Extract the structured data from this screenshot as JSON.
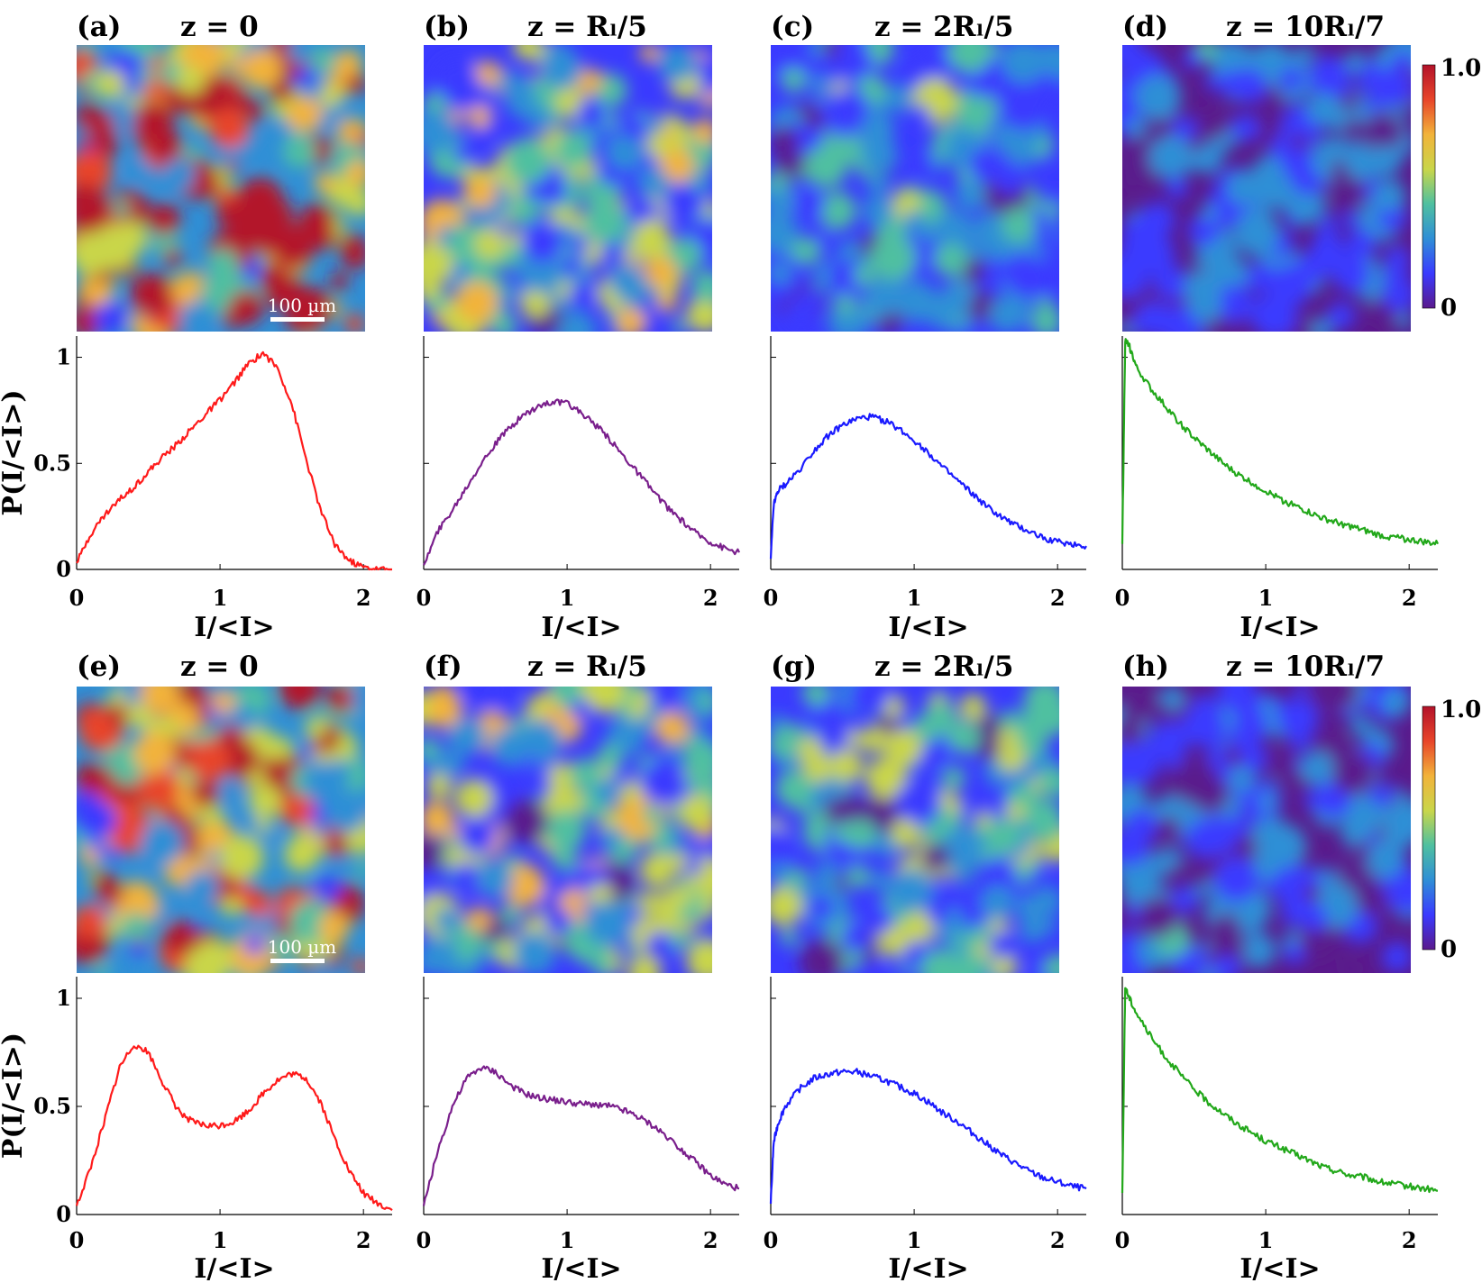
{
  "colors": {
    "curve_red": "#ff1a1a",
    "curve_purple": "#7a1f8c",
    "curve_blue": "#1a1aff",
    "curve_green": "#22a81a",
    "colormap": [
      "#5a1a8c",
      "#3a3aff",
      "#2f8fd6",
      "#4fc0a0",
      "#c9d64a",
      "#f2b33a",
      "#e8452a",
      "#b3122a"
    ]
  },
  "scale_bar": {
    "label": "100 µm"
  },
  "colorbar": {
    "max_label": "1.0",
    "min_label": "0"
  },
  "x_axis_title": "I/<I>",
  "y_axis_title": "P(I/<I>)",
  "rows": [
    {
      "id": "top",
      "panels": [
        {
          "label": "(a)",
          "z": "z = 0",
          "brightness": 0.68,
          "color_key": "curve_red"
        },
        {
          "label": "(b)",
          "z": "z = Rₗ/5",
          "brightness": 0.38,
          "color_key": "curve_purple"
        },
        {
          "label": "(c)",
          "z": "z =  2Rₗ/5",
          "brightness": 0.27,
          "color_key": "curve_blue"
        },
        {
          "label": "(d)",
          "z": "z = 10Rₗ/7",
          "brightness": 0.2,
          "color_key": "curve_green"
        }
      ]
    },
    {
      "id": "bottom",
      "panels": [
        {
          "label": "(e)",
          "z": "z = 0",
          "brightness": 0.55,
          "color_key": "curve_red"
        },
        {
          "label": "(f)",
          "z": "z = Rₗ/5",
          "brightness": 0.38,
          "color_key": "curve_purple"
        },
        {
          "label": "(g)",
          "z": "z =  2Rₗ/5",
          "brightness": 0.3,
          "color_key": "curve_blue"
        },
        {
          "label": "(h)",
          "z": "z = 10Rₗ/7",
          "brightness": 0.2,
          "color_key": "curve_green"
        }
      ]
    }
  ],
  "chart_data": [
    {
      "type": "line",
      "title": "(a) z = 0",
      "xlabel": "I/<I>",
      "ylabel": "P(I/<I>)",
      "xlim": [
        0,
        2.2
      ],
      "ylim": [
        0,
        1.1
      ],
      "xticks": [
        0,
        1,
        2
      ],
      "yticks": [
        0,
        0.5,
        1
      ],
      "ytick_labels": [
        "0",
        "0.5",
        "1"
      ],
      "x": [
        0,
        0.1,
        0.2,
        0.3,
        0.4,
        0.5,
        0.6,
        0.7,
        0.8,
        0.9,
        1.0,
        1.1,
        1.2,
        1.3,
        1.4,
        1.5,
        1.6,
        1.7,
        1.8,
        1.9,
        2.0,
        2.1,
        2.2
      ],
      "y": [
        0.03,
        0.17,
        0.26,
        0.33,
        0.39,
        0.46,
        0.53,
        0.59,
        0.66,
        0.73,
        0.8,
        0.88,
        0.97,
        1.02,
        0.95,
        0.78,
        0.52,
        0.28,
        0.12,
        0.04,
        0.01,
        0.0,
        0.0
      ]
    },
    {
      "type": "line",
      "title": "(b) z = R_l/5",
      "xlabel": "I/<I>",
      "ylabel": "",
      "xlim": [
        0,
        2.2
      ],
      "ylim": [
        0,
        1.1
      ],
      "xticks": [
        0,
        1,
        2
      ],
      "yticks": [
        0,
        0.5,
        1
      ],
      "ytick_labels": [],
      "x": [
        0,
        0.1,
        0.2,
        0.3,
        0.4,
        0.5,
        0.6,
        0.7,
        0.8,
        0.9,
        1.0,
        1.1,
        1.2,
        1.3,
        1.4,
        1.5,
        1.6,
        1.7,
        1.8,
        1.9,
        2.0,
        2.1,
        2.2
      ],
      "y": [
        0.02,
        0.18,
        0.28,
        0.39,
        0.5,
        0.59,
        0.67,
        0.73,
        0.77,
        0.79,
        0.78,
        0.74,
        0.68,
        0.61,
        0.53,
        0.45,
        0.37,
        0.29,
        0.23,
        0.17,
        0.13,
        0.1,
        0.08
      ]
    },
    {
      "type": "line",
      "title": "(c) z = 2R_l/5",
      "xlabel": "I/<I>",
      "ylabel": "",
      "xlim": [
        0,
        2.2
      ],
      "ylim": [
        0,
        1.1
      ],
      "xticks": [
        0,
        1,
        2
      ],
      "yticks": [
        0,
        0.5,
        1
      ],
      "ytick_labels": [],
      "x": [
        0,
        0.02,
        0.05,
        0.1,
        0.2,
        0.3,
        0.4,
        0.5,
        0.6,
        0.7,
        0.8,
        0.9,
        1.0,
        1.1,
        1.2,
        1.3,
        1.4,
        1.5,
        1.6,
        1.7,
        1.8,
        1.9,
        2.0,
        2.1,
        2.2
      ],
      "y": [
        0.05,
        0.3,
        0.37,
        0.4,
        0.47,
        0.56,
        0.63,
        0.68,
        0.71,
        0.72,
        0.7,
        0.66,
        0.61,
        0.55,
        0.48,
        0.42,
        0.36,
        0.3,
        0.25,
        0.21,
        0.18,
        0.15,
        0.13,
        0.12,
        0.11
      ]
    },
    {
      "type": "line",
      "title": "(d) z = 10R_l/7",
      "xlabel": "I/<I>",
      "ylabel": "",
      "xlim": [
        0,
        2.2
      ],
      "ylim": [
        0,
        1.1
      ],
      "xticks": [
        0,
        1,
        2
      ],
      "yticks": [
        0,
        0.5,
        1
      ],
      "ytick_labels": [],
      "x": [
        0,
        0.02,
        0.05,
        0.1,
        0.2,
        0.3,
        0.4,
        0.5,
        0.6,
        0.7,
        0.8,
        0.9,
        1.0,
        1.1,
        1.2,
        1.3,
        1.4,
        1.5,
        1.6,
        1.7,
        1.8,
        1.9,
        2.0,
        2.1,
        2.2
      ],
      "y": [
        0.12,
        1.08,
        1.05,
        0.95,
        0.85,
        0.77,
        0.69,
        0.62,
        0.56,
        0.5,
        0.45,
        0.41,
        0.37,
        0.33,
        0.3,
        0.27,
        0.24,
        0.22,
        0.2,
        0.18,
        0.16,
        0.15,
        0.14,
        0.13,
        0.12
      ]
    },
    {
      "type": "line",
      "title": "(e) z = 0",
      "xlabel": "I/<I>",
      "ylabel": "P(I/<I>)",
      "xlim": [
        0,
        2.2
      ],
      "ylim": [
        0,
        1.1
      ],
      "xticks": [
        0,
        1,
        2
      ],
      "yticks": [
        0,
        0.5,
        1
      ],
      "ytick_labels": [
        "0",
        "0.5",
        "1"
      ],
      "x": [
        0,
        0.1,
        0.2,
        0.3,
        0.4,
        0.5,
        0.6,
        0.7,
        0.8,
        0.9,
        1.0,
        1.1,
        1.2,
        1.3,
        1.4,
        1.5,
        1.6,
        1.7,
        1.8,
        1.9,
        2.0,
        2.1,
        2.2
      ],
      "y": [
        0.04,
        0.22,
        0.45,
        0.68,
        0.79,
        0.75,
        0.61,
        0.49,
        0.43,
        0.41,
        0.41,
        0.43,
        0.48,
        0.56,
        0.62,
        0.65,
        0.63,
        0.52,
        0.35,
        0.2,
        0.1,
        0.05,
        0.02
      ]
    },
    {
      "type": "line",
      "title": "(f) z = R_l/5",
      "xlabel": "I/<I>",
      "ylabel": "",
      "xlim": [
        0,
        2.2
      ],
      "ylim": [
        0,
        1.1
      ],
      "xticks": [
        0,
        1,
        2
      ],
      "yticks": [
        0,
        0.5,
        1
      ],
      "ytick_labels": [],
      "x": [
        0,
        0.1,
        0.2,
        0.3,
        0.4,
        0.5,
        0.6,
        0.7,
        0.8,
        0.9,
        1.0,
        1.1,
        1.2,
        1.3,
        1.4,
        1.5,
        1.6,
        1.7,
        1.8,
        1.9,
        2.0,
        2.1,
        2.2
      ],
      "y": [
        0.04,
        0.3,
        0.5,
        0.63,
        0.68,
        0.66,
        0.6,
        0.56,
        0.54,
        0.53,
        0.52,
        0.51,
        0.51,
        0.5,
        0.48,
        0.45,
        0.41,
        0.36,
        0.3,
        0.24,
        0.18,
        0.14,
        0.12
      ]
    },
    {
      "type": "line",
      "title": "(g) z = 2R_l/5",
      "xlabel": "I/<I>",
      "ylabel": "",
      "xlim": [
        0,
        2.2
      ],
      "ylim": [
        0,
        1.1
      ],
      "xticks": [
        0,
        1,
        2
      ],
      "yticks": [
        0,
        0.5,
        1
      ],
      "ytick_labels": [],
      "x": [
        0,
        0.02,
        0.05,
        0.1,
        0.2,
        0.3,
        0.4,
        0.5,
        0.6,
        0.7,
        0.8,
        0.9,
        1.0,
        1.1,
        1.2,
        1.3,
        1.4,
        1.5,
        1.6,
        1.7,
        1.8,
        1.9,
        2.0,
        2.1,
        2.2
      ],
      "y": [
        0.05,
        0.33,
        0.42,
        0.5,
        0.58,
        0.63,
        0.65,
        0.66,
        0.66,
        0.64,
        0.62,
        0.59,
        0.56,
        0.52,
        0.47,
        0.43,
        0.38,
        0.33,
        0.28,
        0.24,
        0.2,
        0.17,
        0.15,
        0.13,
        0.12
      ]
    },
    {
      "type": "line",
      "title": "(h) z = 10R_l/7",
      "xlabel": "I/<I>",
      "ylabel": "",
      "xlim": [
        0,
        2.2
      ],
      "ylim": [
        0,
        1.1
      ],
      "xticks": [
        0,
        1,
        2
      ],
      "yticks": [
        0,
        0.5,
        1
      ],
      "ytick_labels": [],
      "x": [
        0,
        0.02,
        0.05,
        0.1,
        0.2,
        0.3,
        0.4,
        0.5,
        0.6,
        0.7,
        0.8,
        0.9,
        1.0,
        1.1,
        1.2,
        1.3,
        1.4,
        1.5,
        1.6,
        1.7,
        1.8,
        1.9,
        2.0,
        2.1,
        2.2
      ],
      "y": [
        0.1,
        1.05,
        1.0,
        0.93,
        0.82,
        0.73,
        0.65,
        0.58,
        0.52,
        0.47,
        0.42,
        0.38,
        0.34,
        0.31,
        0.28,
        0.25,
        0.22,
        0.2,
        0.18,
        0.17,
        0.15,
        0.14,
        0.13,
        0.12,
        0.11
      ]
    }
  ]
}
